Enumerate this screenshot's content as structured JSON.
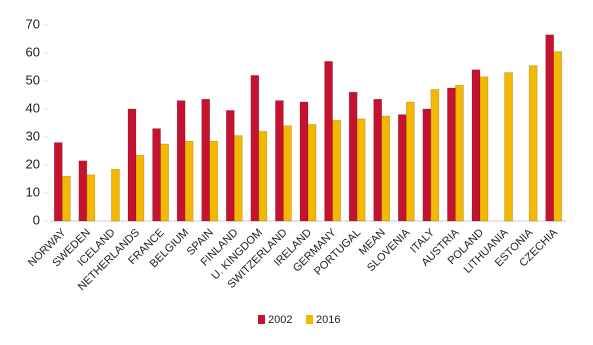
{
  "chart_data": {
    "type": "bar",
    "categories": [
      "NORWAY",
      "SWEDEN",
      "ICELAND",
      "NETHERLANDS",
      "FRANCE",
      "BELGIUM",
      "SPAIN",
      "FINLAND",
      "U. KINGDOM",
      "SWITZERLAND",
      "IRELAND",
      "GERMANY",
      "PORTUGAL",
      "MEAN",
      "SLOVENIA",
      "ITALY",
      "AUSTRIA",
      "POLAND",
      "LITHUANIA",
      "ESTONIA",
      "CZECHIA"
    ],
    "series": [
      {
        "name": "2002",
        "color": "#c4122f",
        "values": [
          28,
          21.5,
          null,
          40,
          33,
          43,
          43.5,
          39.5,
          52,
          43,
          42.5,
          57,
          46,
          43.5,
          38,
          40,
          47.5,
          54,
          null,
          null,
          66.5
        ]
      },
      {
        "name": "2016",
        "color": "#f5b800",
        "values": [
          16,
          16.5,
          18.5,
          23.5,
          27.5,
          28.5,
          28.5,
          30.5,
          32,
          34,
          34.5,
          36,
          36.5,
          37.5,
          42.5,
          47,
          48.5,
          51.5,
          53,
          55.5,
          60.5
        ]
      }
    ],
    "ylim": [
      0,
      70
    ],
    "yticks": [
      0,
      10,
      20,
      30,
      40,
      50,
      60,
      70
    ],
    "legend": "bottom"
  }
}
